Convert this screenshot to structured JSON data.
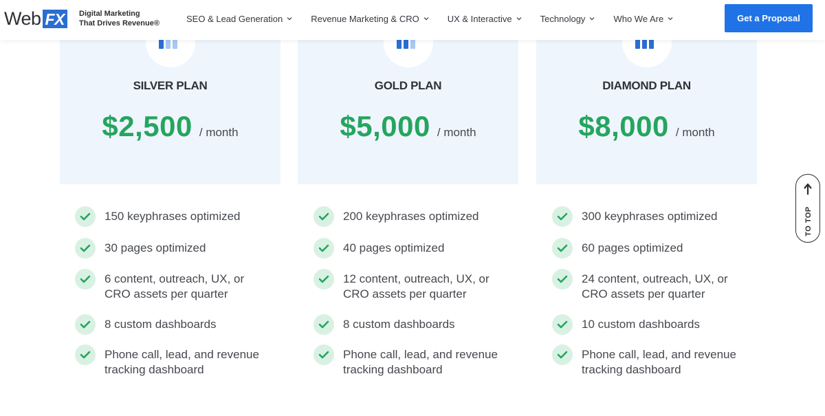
{
  "header": {
    "logo_web": "Web",
    "logo_fx": "FX",
    "tagline_line1": "Digital Marketing",
    "tagline_line2": "That Drives Revenue®",
    "nav": [
      {
        "label": "SEO & Lead Generation"
      },
      {
        "label": "Revenue Marketing & CRO"
      },
      {
        "label": "UX & Interactive"
      },
      {
        "label": "Technology"
      },
      {
        "label": "Who We Are"
      }
    ],
    "cta_label": "Get a Proposal"
  },
  "plans": [
    {
      "name": "SILVER PLAN",
      "price": "$2,500",
      "per": "/ month",
      "features": [
        "150 keyphrases optimized",
        "30 pages optimized",
        "6 content, outreach, UX, or CRO assets per quarter",
        "8 custom dashboards",
        "Phone call, lead, and revenue tracking dashboard"
      ]
    },
    {
      "name": "GOLD PLAN",
      "price": "$5,000",
      "per": "/ month",
      "features": [
        "200 keyphrases optimized",
        "40 pages optimized",
        "12 content, outreach, UX, or CRO assets per quarter",
        "8 custom dashboards",
        "Phone call, lead, and revenue tracking dashboard"
      ]
    },
    {
      "name": "DIAMOND PLAN",
      "price": "$8,000",
      "per": "/ month",
      "features": [
        "300 keyphrases optimized",
        "60 pages optimized",
        "24 content, outreach, UX, or CRO assets per quarter",
        "10 custom dashboards",
        "Phone call, lead, and revenue tracking dashboard"
      ]
    }
  ],
  "to_top_label": "TO TOP",
  "colors": {
    "brand_blue": "#1f73e6",
    "price_green": "#25a55f",
    "card_bg": "#eff5fd",
    "check_bg": "#d9f1e3"
  },
  "icons": {
    "plan_icon": "bar-chart-icon",
    "feature_icon": "check-icon",
    "nav_icon": "chevron-down-icon",
    "to_top_icon": "arrow-up-icon"
  }
}
